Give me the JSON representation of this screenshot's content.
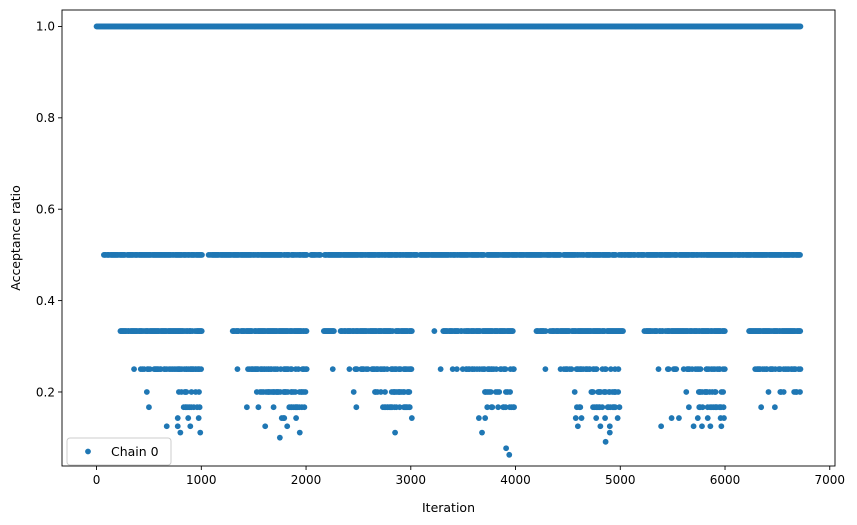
{
  "chart_data": {
    "type": "scatter",
    "title": "",
    "xlabel": "Iteration",
    "ylabel": "Acceptance ratio",
    "xlim": [
      -330,
      7050
    ],
    "ylim": [
      0.038,
      1.036
    ],
    "xticks": [
      0,
      1000,
      2000,
      3000,
      4000,
      5000,
      6000,
      7000
    ],
    "yticks": [
      0.2,
      0.4,
      0.6,
      0.8,
      1.0
    ],
    "xtick_labels": [
      "0",
      "1000",
      "2000",
      "3000",
      "4000",
      "5000",
      "6000",
      "7000"
    ],
    "ytick_labels": [
      "0.2",
      "0.4",
      "0.6",
      "0.8",
      "1.0"
    ],
    "grid": false,
    "legend_position": "lower-left",
    "series": [
      {
        "name": "Chain 0",
        "color": "#1f77b4",
        "marker": "circle",
        "n_iterations": 6720,
        "bands": [
          {
            "y": 1.0,
            "segments": [
              [
                0,
                6720
              ]
            ]
          },
          {
            "y": 0.5,
            "segments": [
              [
                70,
                1010
              ],
              [
                1070,
                2010
              ],
              [
                2040,
                2140
              ],
              [
                2170,
                3060
              ],
              [
                3090,
                4430
              ],
              [
                4460,
                6720
              ]
            ]
          },
          {
            "y": 0.3333,
            "segments": [
              [
                220,
                1010
              ],
              [
                1300,
                2010
              ],
              [
                2170,
                2270
              ],
              [
                2330,
                3020
              ],
              [
                3210,
                3240
              ],
              [
                3310,
                3980
              ],
              [
                4200,
                4290
              ],
              [
                4330,
                5030
              ],
              [
                5230,
                6010
              ],
              [
                6230,
                6720
              ]
            ]
          },
          {
            "y": 0.25,
            "segments": [
              [
                350,
                1000
              ],
              [
                1330,
                1360
              ],
              [
                1430,
                2010
              ],
              [
                2240,
                2270
              ],
              [
                2390,
                3010
              ],
              [
                3270,
                3300
              ],
              [
                3400,
                3990
              ],
              [
                4270,
                4300
              ],
              [
                4430,
                5010
              ],
              [
                5350,
                5380
              ],
              [
                5430,
                6010
              ],
              [
                6280,
                6720
              ]
            ]
          },
          {
            "y": 0.2,
            "segments": [
              [
                470,
                490
              ],
              [
                770,
                1000
              ],
              [
                1530,
                2000
              ],
              [
                2440,
                2470
              ],
              [
                2650,
                2990
              ],
              [
                3700,
                3990
              ],
              [
                4550,
                4580
              ],
              [
                4700,
                5000
              ],
              [
                5620,
                5640
              ],
              [
                5750,
                6010
              ],
              [
                6400,
                6430
              ],
              [
                6520,
                6570
              ],
              [
                6660,
                6720
              ]
            ]
          },
          {
            "y": 0.1667,
            "segments": [
              [
                490,
                510
              ],
              [
                800,
                990
              ],
              [
                1420,
                1450
              ],
              [
                1530,
                1560
              ],
              [
                1680,
                1700
              ],
              [
                1840,
                2000
              ],
              [
                2470,
                2490
              ],
              [
                2710,
                2990
              ],
              [
                3690,
                3730
              ],
              [
                3770,
                3990
              ],
              [
                4570,
                4620
              ],
              [
                4740,
                4850
              ],
              [
                4880,
                5010
              ],
              [
                5640,
                5670
              ],
              [
                5730,
                6000
              ],
              [
                6330,
                6360
              ],
              [
                6460,
                6500
              ]
            ]
          },
          {
            "y": 0.1429,
            "segments": [
              [
                760,
                790
              ],
              [
                860,
                890
              ],
              [
                960,
                990
              ],
              [
                1760,
                1800
              ],
              [
                1890,
                1920
              ],
              [
                3000,
                3020
              ],
              [
                3640,
                3660
              ],
              [
                3700,
                3720
              ],
              [
                4560,
                4590
              ],
              [
                4620,
                4640
              ],
              [
                4760,
                4780
              ],
              [
                4840,
                4870
              ],
              [
                4960,
                4990
              ],
              [
                5480,
                5500
              ],
              [
                5550,
                5570
              ],
              [
                5730,
                5750
              ],
              [
                5820,
                5850
              ],
              [
                5950,
                5990
              ]
            ]
          },
          {
            "y": 0.125,
            "segments": [
              [
                660,
                680
              ],
              [
                760,
                790
              ],
              [
                880,
                910
              ],
              [
                1600,
                1620
              ],
              [
                1810,
                1830
              ],
              [
                4580,
                4610
              ],
              [
                4800,
                4820
              ],
              [
                4890,
                4910
              ],
              [
                5380,
                5400
              ],
              [
                5690,
                5710
              ],
              [
                5770,
                5790
              ],
              [
                5850,
                5870
              ],
              [
                5950,
                5980
              ]
            ]
          },
          {
            "y": 0.1111,
            "segments": [
              [
                790,
                810
              ],
              [
                980,
                1000
              ],
              [
                1930,
                1950
              ],
              [
                2840,
                2860
              ],
              [
                3670,
                3690
              ],
              [
                4890,
                4910
              ]
            ]
          },
          {
            "y": 0.1,
            "segments": [
              [
                1740,
                1760
              ]
            ]
          },
          {
            "y": 0.0909,
            "segments": [
              [
                4850,
                4870
              ]
            ]
          },
          {
            "y": 0.0769,
            "segments": [
              [
                3900,
                3920
              ]
            ]
          },
          {
            "y": 0.0625,
            "segments": [
              [
                3930,
                3950
              ]
            ]
          }
        ]
      }
    ]
  }
}
